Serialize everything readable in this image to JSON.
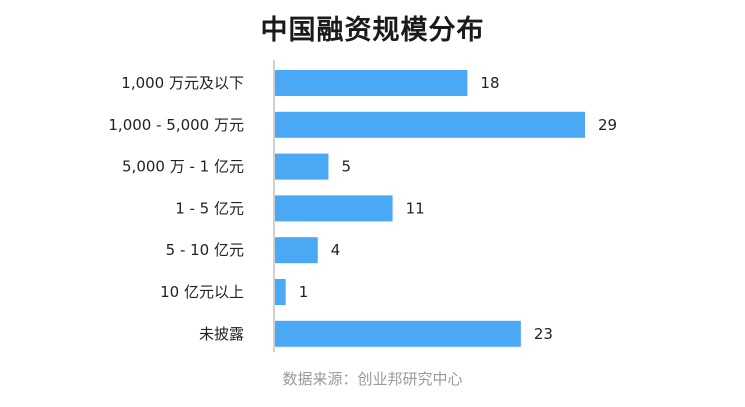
{
  "chart_data": {
    "type": "bar",
    "orientation": "horizontal",
    "title": "中国融资规模分布",
    "source": "数据来源：创业邦研究中心",
    "categories": [
      "1,000 万元及以下",
      "1,000 - 5,000 万元",
      "5,000 万 - 1 亿元",
      "1 - 5 亿元",
      "5 - 10 亿元",
      "10 亿元以上",
      "未披露"
    ],
    "values": [
      18,
      29,
      5,
      11,
      4,
      1,
      23
    ],
    "xlabel": "",
    "ylabel": "",
    "xlim": [
      0,
      29
    ],
    "grid": false,
    "legend": "none",
    "bar_color": "#4aa8f5",
    "axis_color": "#d0d0d0"
  }
}
